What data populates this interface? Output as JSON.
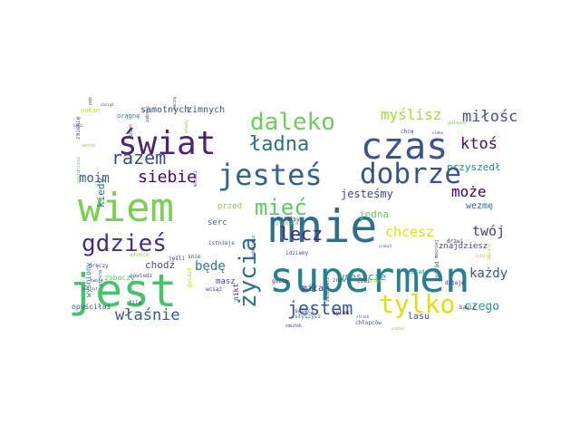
{
  "words": [
    {
      "text": "supermen",
      "size": 46,
      "color": "#26818e"
    },
    {
      "text": "mnie",
      "size": 50,
      "color": "#2e6f8e"
    },
    {
      "text": "jest",
      "size": 50,
      "color": "#4ac16d"
    },
    {
      "text": "wiem",
      "size": 44,
      "color": "#7ad151"
    },
    {
      "text": "czas",
      "size": 40,
      "color": "#3a548c"
    },
    {
      "text": "świat",
      "size": 36,
      "color": "#482576"
    },
    {
      "text": "jesteś",
      "size": 32,
      "color": "#33628d"
    },
    {
      "text": "dobrze",
      "size": 31,
      "color": "#3b528b"
    },
    {
      "text": "gdzieś",
      "size": 26,
      "color": "#46307e"
    },
    {
      "text": "życia",
      "size": 26,
      "color": "#2d708e"
    },
    {
      "text": "tylko",
      "size": 28,
      "color": "#e0dd12"
    },
    {
      "text": "daleko",
      "size": 26,
      "color": "#6ccd5a"
    },
    {
      "text": "mieć",
      "size": 24,
      "color": "#5ec962"
    },
    {
      "text": "ładna",
      "size": 22,
      "color": "#2e6e8e"
    },
    {
      "text": "razem",
      "size": 20,
      "color": "#3e4989"
    },
    {
      "text": "jestem",
      "size": 20,
      "color": "#365c8d"
    },
    {
      "text": "lecz",
      "size": 20,
      "color": "#472c7a"
    },
    {
      "text": "właśnie",
      "size": 17,
      "color": "#38598c"
    },
    {
      "text": "siebie",
      "size": 18,
      "color": "#46085c"
    },
    {
      "text": "miłości",
      "size": 17,
      "color": "#3b528b"
    },
    {
      "text": "myślisz",
      "size": 16,
      "color": "#a5db36"
    },
    {
      "text": "ktoś",
      "size": 17,
      "color": "#470d60"
    },
    {
      "text": "może",
      "size": 16,
      "color": "#440154"
    },
    {
      "text": "chcesz",
      "size": 15,
      "color": "#d8e219"
    },
    {
      "text": "twój",
      "size": 15,
      "color": "#433e85"
    },
    {
      "text": "moim",
      "size": 14,
      "color": "#355f8d"
    },
    {
      "text": "będę",
      "size": 14,
      "color": "#2a778e"
    },
    {
      "text": "każdy",
      "size": 14,
      "color": "#3b528b"
    },
    {
      "text": "czego",
      "size": 13,
      "color": "#1e9b8a"
    },
    {
      "text": "jesteśmy",
      "size": 12,
      "color": "#3f4788"
    },
    {
      "text": "przyszedł",
      "size": 11,
      "color": "#25848e"
    },
    {
      "text": "wreszcie",
      "size": 11,
      "color": "#21918c"
    },
    {
      "text": "jedna",
      "size": 11,
      "color": "#5ec962"
    },
    {
      "text": "samotnych",
      "size": 10,
      "color": "#3f4889"
    },
    {
      "text": "zimnych",
      "size": 10,
      "color": "#3b528b"
    },
    {
      "text": "kiedy",
      "size": 11,
      "color": "#2b758e"
    },
    {
      "text": "chodź",
      "size": 11,
      "color": "#3d4e8a"
    },
    {
      "text": "miła",
      "size": 10,
      "color": "#443983"
    },
    {
      "text": "lasu",
      "size": 10,
      "color": "#3e4a89"
    },
    {
      "text": "znajdziesz",
      "size": 9,
      "color": "#3e4989"
    },
    {
      "text": "wezmę",
      "size": 10,
      "color": "#31688e"
    },
    {
      "text": "przed",
      "size": 9,
      "color": "#8fd744"
    },
    {
      "text": "serc",
      "size": 9,
      "color": "#31688e"
    },
    {
      "text": "masz",
      "size": 9,
      "color": "#3b528b"
    },
    {
      "text": "zobaczy",
      "size": 8,
      "color": "#5ec962"
    },
    {
      "text": "wyśniony",
      "size": 8,
      "color": "#2a788e"
    },
    {
      "text": "opuściłaś",
      "size": 8,
      "color": "#3b528b"
    },
    {
      "text": "nikt",
      "size": 8,
      "color": "#472d7b"
    },
    {
      "text": "pukan",
      "size": 7,
      "color": "#b5de2b"
    },
    {
      "text": "orągnę",
      "size": 7,
      "color": "#26828e"
    },
    {
      "text": "zmienię",
      "size": 6,
      "color": "#3e4c8a"
    },
    {
      "text": "słońce",
      "size": 6,
      "color": "#7ad151"
    },
    {
      "text": "jeśli",
      "size": 6,
      "color": "#414487"
    },
    {
      "text": "wciąż",
      "size": 6,
      "color": "#46327e"
    },
    {
      "text": "gwiazd",
      "size": 6,
      "color": "#b8de29"
    },
    {
      "text": "gdzie",
      "size": 6,
      "color": "#453781"
    },
    {
      "text": "znów",
      "size": 6,
      "color": "#3e4989"
    },
    {
      "text": "czai",
      "size": 6,
      "color": "#404688"
    },
    {
      "text": "więc",
      "size": 6,
      "color": "#b5de2b"
    },
    {
      "text": "błąd",
      "size": 6,
      "color": "#1f958b"
    },
    {
      "text": "chcę",
      "size": 6,
      "color": "#433d84"
    },
    {
      "text": "drzwi",
      "size": 6,
      "color": "#481f71"
    },
    {
      "text": "pośród",
      "size": 6,
      "color": "#3e4c8a"
    },
    {
      "text": "bawić",
      "size": 6,
      "color": "#3e4989"
    },
    {
      "text": "dzieje",
      "size": 6,
      "color": "#482878"
    },
    {
      "text": "byłem",
      "size": 6,
      "color": "#481467"
    },
    {
      "text": "świeci",
      "size": 6,
      "color": "#433e85"
    },
    {
      "text": "słyszysz",
      "size": 6,
      "color": "#2d708e"
    },
    {
      "text": "chłopców",
      "size": 6,
      "color": "#3b528b"
    },
    {
      "text": "chciałby",
      "size": 6,
      "color": "#404588"
    },
    {
      "text": "oddalasz",
      "size": 5,
      "color": "#3e4989"
    },
    {
      "text": "idziemy",
      "size": 6,
      "color": "#3b528b"
    },
    {
      "text": "planeta",
      "size": 6,
      "color": "#6ece58"
    },
    {
      "text": "istnieje",
      "size": 6,
      "color": "#3b528b"
    },
    {
      "text": "młodzi",
      "size": 5,
      "color": "#3e4a89"
    },
    {
      "text": "dręczy",
      "size": 6,
      "color": "#3b528b"
    },
    {
      "text": "twoje",
      "size": 5,
      "color": "#3e4989"
    },
    {
      "text": "powiedz",
      "size": 6,
      "color": "#3b528b"
    },
    {
      "text": "film",
      "size": 6,
      "color": "#3e4989"
    },
    {
      "text": "wtedy",
      "size": 5,
      "color": "#8fd744"
    },
    {
      "text": "śnie",
      "size": 6,
      "color": "#3b528b"
    },
    {
      "text": "gwiazdy",
      "size": 5,
      "color": "#7ad151"
    },
    {
      "text": "zostaniesz",
      "size": 5,
      "color": "#5ec962"
    },
    {
      "text": "serce",
      "size": 5,
      "color": "#7ad151"
    },
    {
      "text": "dzień",
      "size": 5,
      "color": "#3e4989"
    },
    {
      "text": "smutek",
      "size": 5,
      "color": "#3e4989"
    },
    {
      "text": "zabrać",
      "size": 5,
      "color": "#3b528b"
    },
    {
      "text": "subisz",
      "size": 5,
      "color": "#b5de2b"
    },
    {
      "text": "mocniej",
      "size": 5,
      "color": "#3e4989"
    },
    {
      "text": "zmieniasz",
      "size": 5,
      "color": "#3e4989"
    },
    {
      "text": "zacząć",
      "size": 5,
      "color": "#3b528b"
    },
    {
      "text": "oszalę",
      "size": 5,
      "color": "#b5de2b"
    },
    {
      "text": "wiosną",
      "size": 5,
      "color": "#2d708e"
    },
    {
      "text": "poboje",
      "size": 5,
      "color": "#3e4989"
    },
    {
      "text": "zaczął",
      "size": 4,
      "color": "#3b528b"
    },
    {
      "text": "podrzyt",
      "size": 4,
      "color": "#3b528b"
    },
    {
      "text": "ludzi",
      "size": 4,
      "color": "#3e4989"
    },
    {
      "text": "zrobił",
      "size": 4,
      "color": "#3e4989"
    },
    {
      "text": "pamięć",
      "size": 4,
      "color": "#7ad151"
    },
    {
      "text": "strach",
      "size": 4,
      "color": "#3e4989"
    },
    {
      "text": "niebo",
      "size": 4,
      "color": "#3b528b"
    }
  ]
}
